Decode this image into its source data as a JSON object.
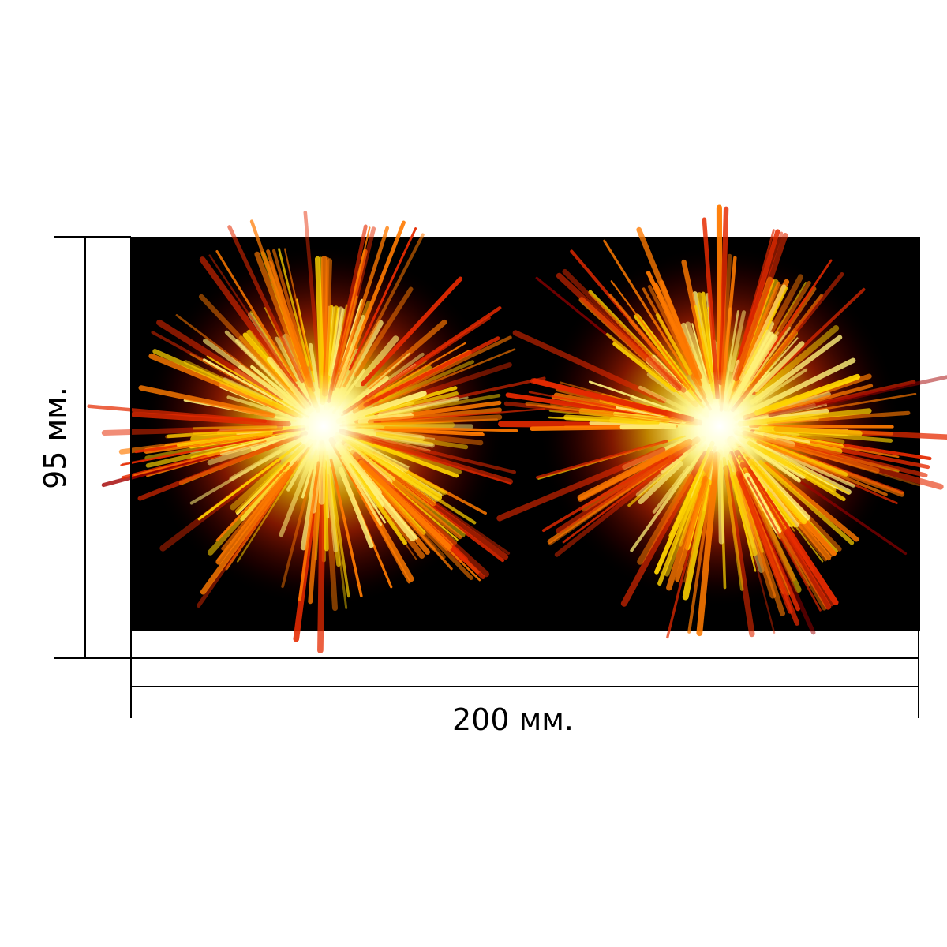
{
  "dimensions": {
    "width_label": "200 мм.",
    "height_label": "95 мм."
  },
  "artwork": {
    "background_color": "#000000",
    "bursts": [
      {
        "name": "firework-burst-left"
      },
      {
        "name": "firework-burst-right"
      }
    ],
    "burst_colors": [
      "#ffffff",
      "#fff27a",
      "#ffd400",
      "#ff7a00",
      "#e62a00",
      "#a30000"
    ]
  },
  "lines": {
    "color": "#000000"
  }
}
